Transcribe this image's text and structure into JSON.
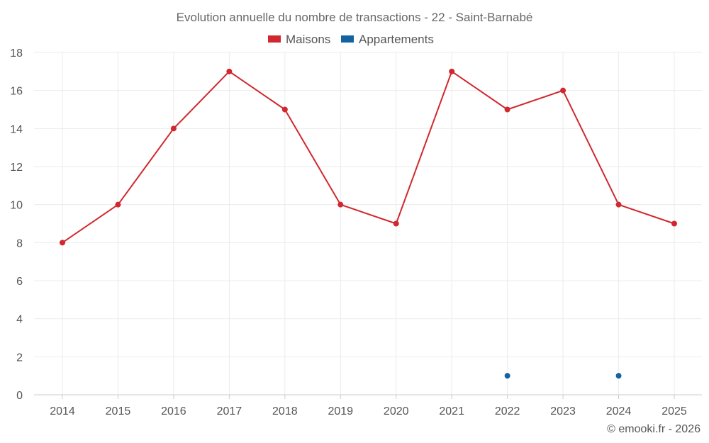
{
  "chart_data": {
    "type": "line",
    "title": "Evolution annuelle du nombre de transactions - 22 - Saint-Barnabé",
    "categories": [
      "2014",
      "2015",
      "2016",
      "2017",
      "2018",
      "2019",
      "2020",
      "2021",
      "2022",
      "2023",
      "2024",
      "2025"
    ],
    "series": [
      {
        "name": "Maisons",
        "color": "#d0282e",
        "values": [
          8,
          10,
          14,
          17,
          15,
          10,
          9,
          17,
          15,
          16,
          10,
          9
        ]
      },
      {
        "name": "Appartements",
        "color": "#1463a0",
        "values": [
          null,
          null,
          null,
          null,
          null,
          null,
          null,
          null,
          1,
          null,
          1,
          null
        ]
      }
    ],
    "ylim": [
      0,
      18
    ],
    "yticks": [
      0,
      2,
      4,
      6,
      8,
      10,
      12,
      14,
      16,
      18
    ],
    "xlabel": "",
    "ylabel": "",
    "grid": true,
    "legend_position": "top-center"
  },
  "credit": "© emooki.fr - 2026"
}
